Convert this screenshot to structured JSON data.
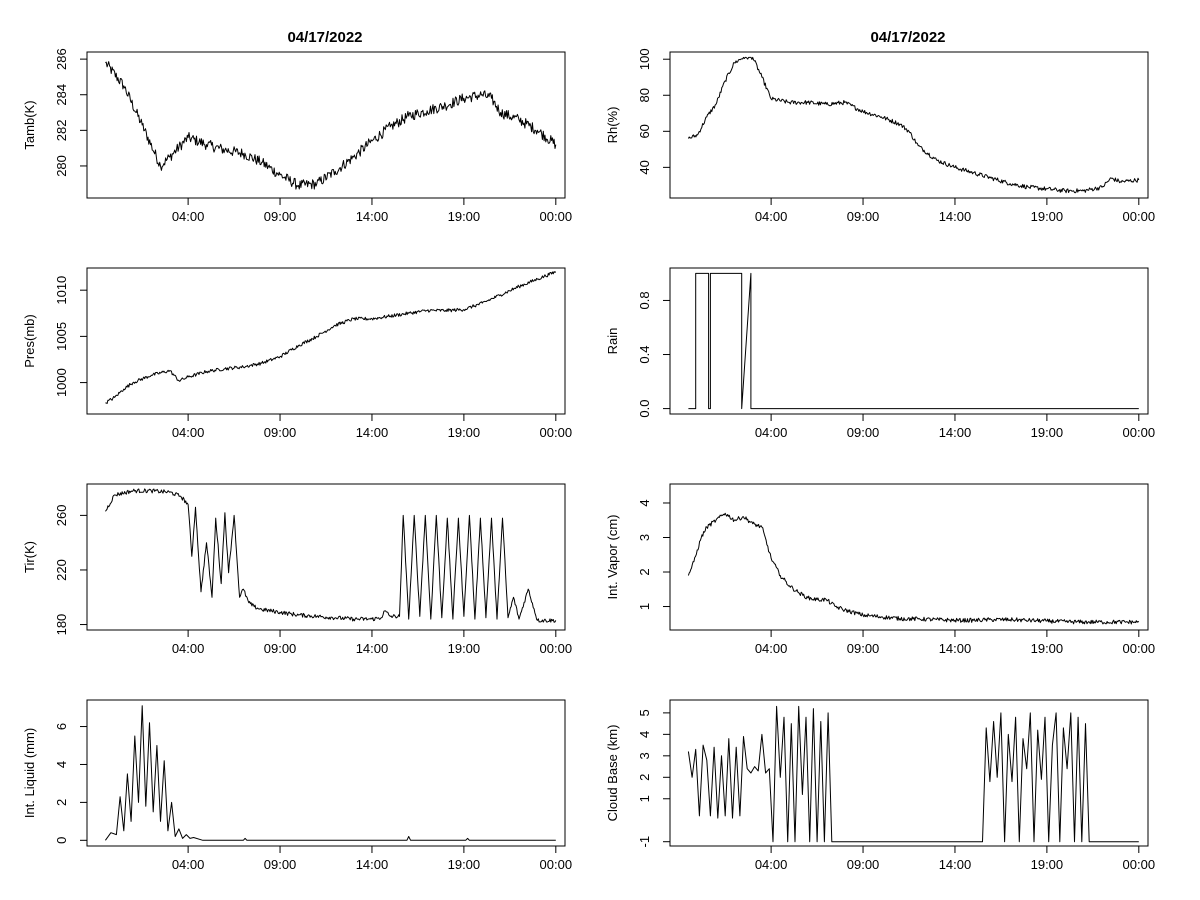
{
  "titles": {
    "left": "04/17/2022",
    "right": "04/17/2022"
  },
  "chart_data": [
    {
      "id": "tamb",
      "type": "line",
      "title": "04/17/2022",
      "ylabel": "Tamb(K)",
      "xlim": [
        -1.5,
        24.5
      ],
      "ylim": [
        278.2,
        286.4
      ],
      "xticks": [
        4,
        9,
        14,
        19,
        24
      ],
      "xtick_labels": [
        "04:00",
        "09:00",
        "14:00",
        "19:00",
        "00:00"
      ],
      "yticks": [
        280,
        282,
        284,
        286
      ],
      "ytick_labels": [
        "280",
        "282",
        "284",
        "286"
      ],
      "series": [
        {
          "name": "Tamb(K)",
          "noise": 0.3,
          "x": [
            -0.5,
            0.5,
            1.5,
            2.5,
            3,
            4,
            5,
            6,
            7,
            8,
            9,
            10,
            11,
            12,
            13,
            14,
            15,
            16,
            17,
            18,
            19,
            20,
            20.5,
            21,
            22,
            23,
            24
          ],
          "y": [
            285.8,
            284.5,
            282.3,
            280.0,
            280.5,
            281.6,
            281.2,
            280.9,
            280.7,
            280.2,
            279.5,
            278.9,
            279.0,
            279.7,
            280.5,
            281.4,
            282.2,
            282.8,
            283.1,
            283.4,
            283.8,
            284.0,
            283.8,
            283.0,
            282.6,
            282.0,
            281.2
          ]
        }
      ]
    },
    {
      "id": "rh",
      "type": "line",
      "title": "04/17/2022",
      "ylabel": "Rh(%)",
      "xlim": [
        -1.5,
        24.5
      ],
      "ylim": [
        23,
        104
      ],
      "xticks": [
        4,
        9,
        14,
        19,
        24
      ],
      "xtick_labels": [
        "04:00",
        "09:00",
        "14:00",
        "19:00",
        "00:00"
      ],
      "yticks": [
        40,
        60,
        80,
        100
      ],
      "ytick_labels": [
        "40",
        "60",
        "80",
        "100"
      ],
      "series": [
        {
          "name": "Rh(%)",
          "noise": 1.2,
          "clip_max": 101,
          "x": [
            -0.5,
            0,
            0.5,
            1,
            1.5,
            2,
            2.5,
            3,
            3.5,
            4,
            5,
            6,
            7,
            8,
            9,
            10,
            11,
            11.5,
            12,
            13,
            14,
            15,
            16,
            17,
            18,
            19,
            20,
            21,
            22,
            22.5,
            23,
            24
          ],
          "y": [
            56,
            58,
            68,
            75,
            88,
            98,
            101,
            101,
            90,
            78,
            76,
            76,
            75,
            76,
            71,
            68,
            64,
            60,
            52,
            44,
            40,
            37,
            34,
            31,
            29,
            28,
            27,
            27,
            29,
            34,
            32,
            33
          ]
        }
      ]
    },
    {
      "id": "pres",
      "type": "line",
      "title": "",
      "ylabel": "Pres(mb)",
      "xlim": [
        -1.5,
        24.5
      ],
      "ylim": [
        996.6,
        1012.4
      ],
      "xticks": [
        4,
        9,
        14,
        19,
        24
      ],
      "xtick_labels": [
        "04:00",
        "09:00",
        "14:00",
        "19:00",
        "00:00"
      ],
      "yticks": [
        1000,
        1005,
        1010
      ],
      "ytick_labels": [
        "1000",
        "1005",
        "1010"
      ],
      "series": [
        {
          "name": "Pres(mb)",
          "noise": 0.18,
          "x": [
            -0.5,
            0,
            0.5,
            1,
            2,
            3,
            3.5,
            4,
            5,
            6,
            7,
            8,
            9,
            10,
            11,
            12,
            13,
            14,
            15,
            16,
            17,
            18,
            19,
            20,
            21,
            22,
            23,
            24
          ],
          "y": [
            997.8,
            998.4,
            999.3,
            1000.0,
            1000.8,
            1001.3,
            1000.2,
            1000.6,
            1001.2,
            1001.5,
            1001.7,
            1002.1,
            1002.8,
            1004.0,
            1005.0,
            1006.2,
            1006.9,
            1006.9,
            1007.2,
            1007.5,
            1007.8,
            1007.8,
            1007.9,
            1008.6,
            1009.5,
            1010.4,
            1011.2,
            1012.0
          ]
        }
      ]
    },
    {
      "id": "rain",
      "type": "line",
      "title": "",
      "ylabel": "Rain",
      "xlim": [
        -1.5,
        24.5
      ],
      "ylim": [
        -0.04,
        1.04
      ],
      "xticks": [
        4,
        9,
        14,
        19,
        24
      ],
      "xtick_labels": [
        "04:00",
        "09:00",
        "14:00",
        "19:00",
        "00:00"
      ],
      "yticks": [
        0.0,
        0.4,
        0.8
      ],
      "ytick_labels": [
        "0.0",
        "0.4",
        "0.8"
      ],
      "series": [
        {
          "name": "Rain",
          "noise": 0,
          "x": [
            -0.5,
            -0.1,
            -0.1,
            0.6,
            0.6,
            0.7,
            0.7,
            2.4,
            2.4,
            2.9,
            2.9,
            24
          ],
          "y": [
            0,
            0,
            1,
            1,
            0,
            0,
            1,
            1,
            0,
            1,
            0,
            0
          ]
        }
      ]
    },
    {
      "id": "tir",
      "type": "line",
      "title": "",
      "ylabel": "Tir(K)",
      "xlim": [
        -1.5,
        24.5
      ],
      "ylim": [
        176,
        283
      ],
      "xticks": [
        4,
        9,
        14,
        19,
        24
      ],
      "xtick_labels": [
        "04:00",
        "09:00",
        "14:00",
        "19:00",
        "00:00"
      ],
      "yticks": [
        180,
        220,
        260
      ],
      "ytick_labels": [
        "180",
        "220",
        "260"
      ],
      "series": [
        {
          "name": "Tir(K)",
          "noise": 1.5,
          "x": [
            -0.5,
            0,
            1,
            2,
            3,
            3.6,
            4,
            4.2,
            4.4,
            4.7,
            5,
            5.3,
            5.5,
            5.8,
            6,
            6.2,
            6.5,
            6.8,
            7,
            7.3,
            7.6,
            8,
            9,
            10,
            11,
            12,
            13,
            14,
            14.5,
            14.7,
            15,
            15.5,
            15.7,
            16,
            16.3,
            16.6,
            16.9,
            17.2,
            17.5,
            17.8,
            18.1,
            18.4,
            18.7,
            19,
            19.3,
            19.6,
            19.9,
            20.2,
            20.5,
            20.8,
            21.1,
            21.4,
            21.7,
            22,
            22.5,
            23,
            24
          ],
          "y": [
            263,
            275,
            278,
            278,
            277,
            274,
            268,
            230,
            266,
            204,
            240,
            200,
            258,
            210,
            262,
            218,
            260,
            200,
            206,
            196,
            193,
            191,
            189,
            187,
            186,
            185,
            184,
            184,
            185,
            190,
            186,
            186,
            260,
            184,
            260,
            186,
            260,
            184,
            260,
            185,
            258,
            184,
            258,
            186,
            260,
            184,
            258,
            185,
            258,
            184,
            258,
            185,
            200,
            184,
            206,
            183,
            183
          ]
        }
      ]
    },
    {
      "id": "vapor",
      "type": "line",
      "title": "",
      "ylabel": "Int. Vapor (cm)",
      "xlim": [
        -1.5,
        24.5
      ],
      "ylim": [
        0.32,
        4.55
      ],
      "xticks": [
        4,
        9,
        14,
        19,
        24
      ],
      "xtick_labels": [
        "04:00",
        "09:00",
        "14:00",
        "19:00",
        "00:00"
      ],
      "yticks": [
        1,
        2,
        3,
        4
      ],
      "ytick_labels": [
        "1",
        "2",
        "3",
        "4"
      ],
      "series": [
        {
          "name": "Int. Vapor (cm)",
          "noise": 0.06,
          "x": [
            -0.5,
            -0.2,
            0.2,
            0.5,
            1,
            1.5,
            2,
            2.5,
            3,
            3.5,
            4,
            4.5,
            5,
            5.5,
            6,
            6.5,
            7,
            7.5,
            8,
            9,
            10,
            11,
            12,
            13,
            14,
            15,
            16,
            17,
            18,
            19,
            20,
            21,
            22,
            23,
            24
          ],
          "y": [
            1.9,
            2.3,
            3.0,
            3.3,
            3.5,
            3.7,
            3.5,
            3.6,
            3.4,
            3.3,
            2.4,
            1.9,
            1.6,
            1.4,
            1.25,
            1.2,
            1.2,
            1.0,
            0.9,
            0.75,
            0.7,
            0.65,
            0.64,
            0.62,
            0.6,
            0.6,
            0.62,
            0.62,
            0.6,
            0.58,
            0.56,
            0.55,
            0.55,
            0.55,
            0.55
          ]
        }
      ]
    },
    {
      "id": "liquid",
      "type": "line",
      "title": "",
      "ylabel": "Int. Liquid (mm)",
      "xlim": [
        -1.5,
        24.5
      ],
      "ylim": [
        -0.3,
        7.4
      ],
      "xticks": [
        4,
        9,
        14,
        19,
        24
      ],
      "xtick_labels": [
        "04:00",
        "09:00",
        "14:00",
        "19:00",
        "00:00"
      ],
      "yticks": [
        0,
        2,
        4,
        6
      ],
      "ytick_labels": [
        "0",
        "2",
        "4",
        "6"
      ],
      "series": [
        {
          "name": "Int. Liquid (mm)",
          "noise": 0,
          "x": [
            -0.5,
            -0.2,
            0.1,
            0.3,
            0.5,
            0.7,
            0.9,
            1.1,
            1.3,
            1.5,
            1.7,
            1.9,
            2.1,
            2.3,
            2.5,
            2.7,
            2.9,
            3.1,
            3.3,
            3.5,
            3.7,
            3.9,
            4.1,
            4.3,
            4.8,
            7,
            7.1,
            7.2,
            15.9,
            16.0,
            16.1,
            19.1,
            19.2,
            19.3,
            24
          ],
          "y": [
            0,
            0.4,
            0.3,
            2.3,
            0.5,
            3.5,
            1.0,
            5.5,
            2.0,
            7.1,
            1.8,
            6.2,
            1.5,
            5.0,
            1.0,
            4.2,
            0.5,
            2.0,
            0.2,
            0.6,
            0.1,
            0.3,
            0.1,
            0.15,
            0,
            0,
            0.1,
            0,
            0,
            0.2,
            0,
            0,
            0.1,
            0,
            0
          ]
        }
      ]
    },
    {
      "id": "cloudbase",
      "type": "line",
      "title": "",
      "ylabel": "Cloud Base (km)",
      "xlim": [
        -1.5,
        24.5
      ],
      "ylim": [
        -1.2,
        5.6
      ],
      "xticks": [
        4,
        9,
        14,
        19,
        24
      ],
      "xtick_labels": [
        "04:00",
        "09:00",
        "14:00",
        "19:00",
        "00:00"
      ],
      "yticks": [
        -1,
        1,
        2,
        3,
        4,
        5
      ],
      "ytick_labels": [
        "-1",
        "1",
        "2",
        "3",
        "4",
        "5"
      ],
      "series": [
        {
          "name": "Cloud Base (km)",
          "noise": 0,
          "x": [
            -0.5,
            -0.3,
            -0.1,
            0.1,
            0.3,
            0.5,
            0.7,
            0.9,
            1.1,
            1.3,
            1.5,
            1.7,
            1.9,
            2.1,
            2.3,
            2.5,
            2.7,
            2.9,
            3.1,
            3.3,
            3.5,
            3.7,
            3.9,
            4.1,
            4.3,
            4.5,
            4.7,
            4.9,
            5.1,
            5.3,
            5.5,
            5.7,
            5.9,
            6.1,
            6.3,
            6.5,
            6.7,
            6.9,
            7.1,
            7.3,
            8,
            12,
            15.5,
            15.7,
            15.9,
            16.1,
            16.3,
            16.5,
            16.7,
            16.9,
            17.1,
            17.3,
            17.5,
            17.7,
            17.9,
            18.1,
            18.3,
            18.5,
            18.7,
            18.9,
            19.1,
            19.3,
            19.5,
            19.7,
            19.9,
            20.1,
            20.3,
            20.5,
            20.7,
            20.9,
            21.1,
            21.3,
            21.5,
            22,
            24
          ],
          "y": [
            3.2,
            2.0,
            3.3,
            0.2,
            3.5,
            2.8,
            0.2,
            3.4,
            0.1,
            3.0,
            0.2,
            3.8,
            0.1,
            3.4,
            0.2,
            3.9,
            2.4,
            2.2,
            2.5,
            2.3,
            4.0,
            2.2,
            2.4,
            -1,
            5.3,
            2.0,
            4.8,
            -1,
            4.5,
            -1,
            5.3,
            1.2,
            4.8,
            -1,
            5.2,
            -1,
            4.6,
            -1,
            5.0,
            -1,
            -1,
            -1,
            -1,
            4.3,
            1.8,
            4.6,
            2.0,
            5.0,
            -1,
            4.0,
            1.8,
            4.8,
            -1,
            3.8,
            2.4,
            5.0,
            -1,
            4.2,
            1.9,
            4.8,
            -1,
            3.5,
            5.0,
            -1,
            4.3,
            2.4,
            5.0,
            -1,
            4.8,
            -1,
            4.5,
            -1,
            -1,
            -1,
            -1
          ]
        }
      ]
    }
  ]
}
